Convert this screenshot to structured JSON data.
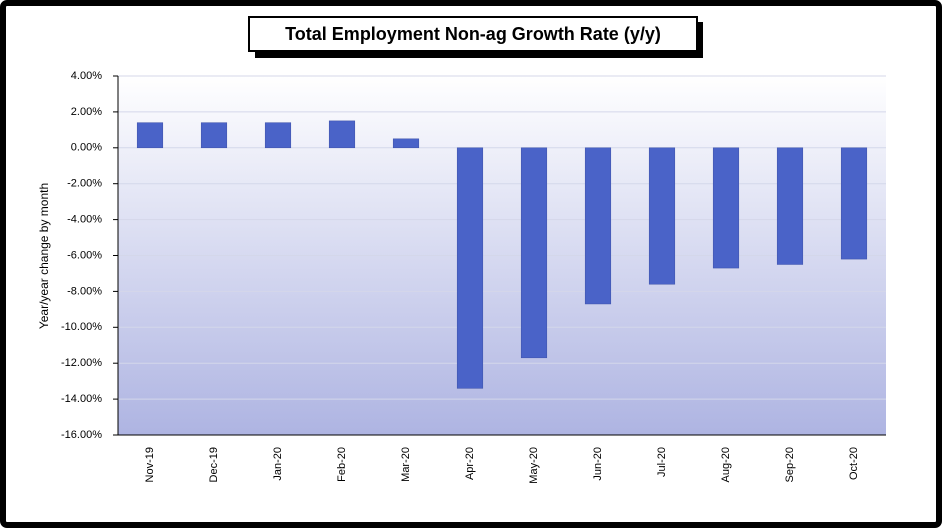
{
  "chart_data": {
    "type": "bar",
    "title": "Total Employment Non-ag Growth Rate (y/y)",
    "y_label": "Year/year change by month",
    "categories": [
      "Nov-19",
      "Dec-19",
      "Jan-20",
      "Feb-20",
      "Mar-20",
      "Apr-20",
      "May-20",
      "Jun-20",
      "Jul-20",
      "Aug-20",
      "Sep-20",
      "Oct-20"
    ],
    "values": [
      1.4,
      1.4,
      1.4,
      1.5,
      0.5,
      -13.4,
      -11.7,
      -8.7,
      -7.6,
      -6.7,
      -6.5,
      -6.2
    ],
    "color": "#4a63c8",
    "ylim": [
      -16,
      4
    ],
    "yticks": [
      {
        "value": 4,
        "label": "4.00%"
      },
      {
        "value": 2,
        "label": "2.00%"
      },
      {
        "value": 0,
        "label": "0.00%"
      },
      {
        "value": -2,
        "label": "-2.00%"
      },
      {
        "value": -4,
        "label": "-4.00%"
      },
      {
        "value": -6,
        "label": "-6.00%"
      },
      {
        "value": -8,
        "label": "-8.00%"
      },
      {
        "value": -10,
        "label": "-10.00%"
      },
      {
        "value": -12,
        "label": "-12.00%"
      },
      {
        "value": -14,
        "label": "-14.00%"
      },
      {
        "value": -16,
        "label": "-16.00%"
      }
    ],
    "grid": true
  }
}
